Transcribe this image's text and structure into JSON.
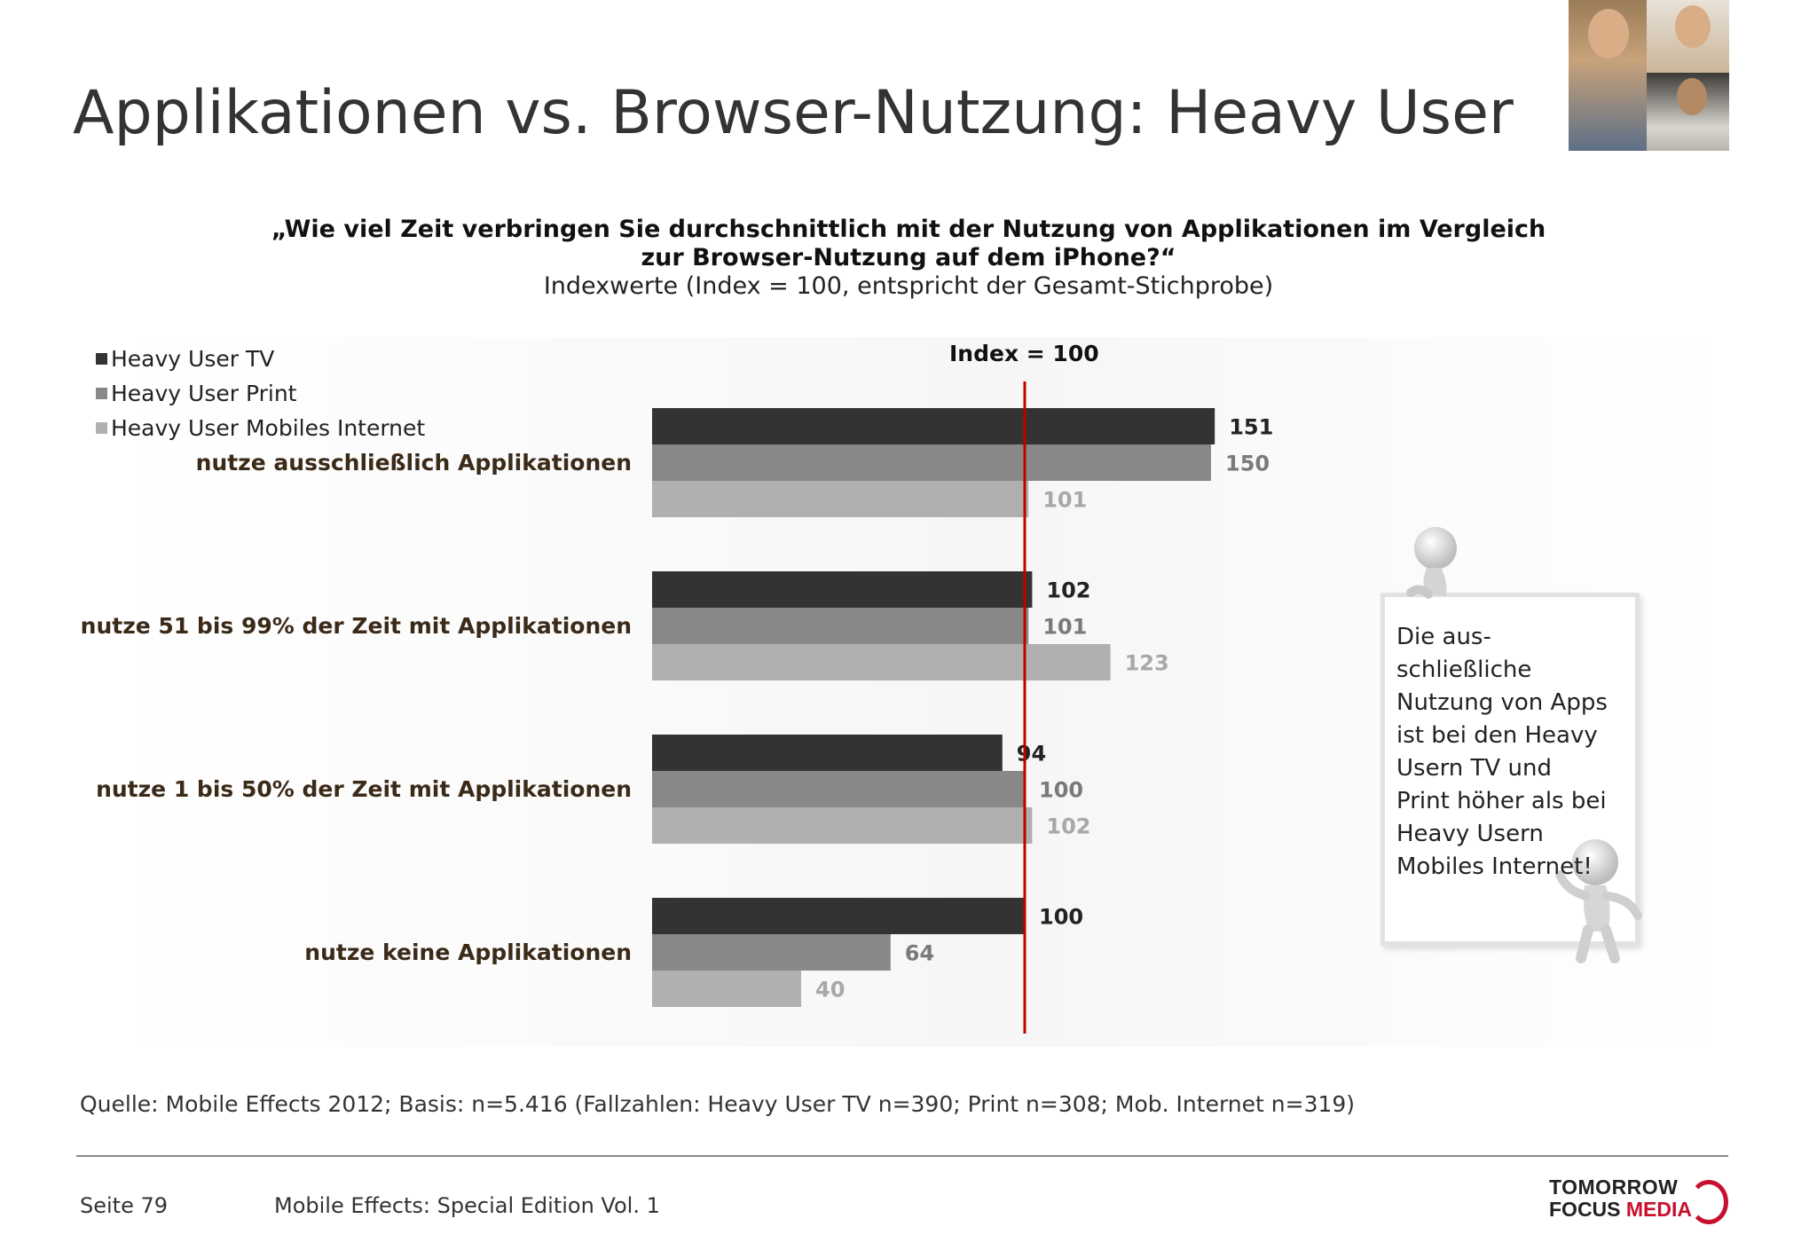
{
  "title": "Applikationen vs. Browser-Nutzung: Heavy User",
  "question": "„Wie viel Zeit verbringen Sie durchschnittlich mit der Nutzung von Applikationen im Vergleich zur Browser-Nutzung auf dem iPhone?“",
  "subtitle": "Indexwerte (Index = 100, entspricht der Gesamt-Stichprobe)",
  "index_label": "Index = 100",
  "callout_text": "Die aus-schließliche Nutzung von Apps ist bei den Heavy Usern TV und Print höher als bei Heavy Usern Mobiles Internet!",
  "source": "Quelle: Mobile Effects 2012; Basis: n=5.416 (Fallzahlen: Heavy User TV n=390; Print n=308; Mob. Internet n=319)",
  "footer": {
    "page": "Seite 79",
    "title": "Mobile Effects: Special Edition Vol. 1",
    "logo_line1": "TOMORROW",
    "logo_line2a": "FOCUS",
    "logo_line2b": "MEDIA"
  },
  "colors": {
    "series_tv": "#333333",
    "series_print": "#888888",
    "series_mobile": "#b0b0b0",
    "index_line": "#c00000",
    "label_tv": "#222222",
    "label_print": "#7a7a7a",
    "label_mobile": "#a8a8a8"
  },
  "chart_data": {
    "type": "bar",
    "orientation": "horizontal",
    "categories": [
      "nutze ausschließlich Applikationen",
      "nutze 51 bis 99% der Zeit mit Applikationen",
      "nutze 1 bis 50% der Zeit mit Applikationen",
      "nutze keine Applikationen"
    ],
    "series": [
      {
        "name": "Heavy User TV",
        "values": [
          151,
          102,
          94,
          100
        ]
      },
      {
        "name": "Heavy User Print",
        "values": [
          150,
          101,
          100,
          64
        ]
      },
      {
        "name": "Heavy User Mobiles Internet",
        "values": [
          101,
          123,
          102,
          40
        ]
      }
    ],
    "reference_line": 100,
    "xlim": [
      0,
      160
    ],
    "legend_position": "top-left",
    "grid": false
  }
}
